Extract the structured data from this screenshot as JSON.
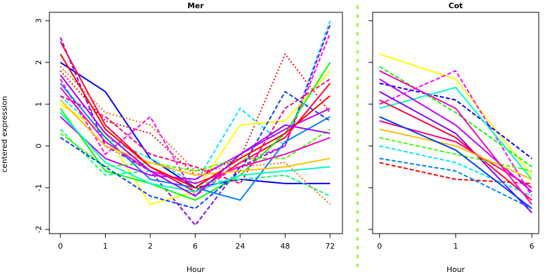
{
  "chart_data": [
    {
      "type": "line",
      "title": "Mer",
      "xlabel": "Hour",
      "ylabel": "centered expression",
      "categories": [
        "0",
        "1",
        "2",
        "6",
        "24",
        "48",
        "72"
      ],
      "yticks": [
        -2,
        -1,
        0,
        1,
        2,
        3
      ],
      "ylim": [
        -2.1,
        3.2
      ],
      "grid": false,
      "legend": "none",
      "series": [
        {
          "color": "#0000ff",
          "dash": "solid",
          "values": [
            2.0,
            1.3,
            -0.3,
            -1.0,
            -0.8,
            -0.9,
            -0.9
          ]
        },
        {
          "color": "#ff0000",
          "dash": "dotted",
          "values": [
            1.8,
            0.6,
            0.3,
            -0.7,
            -0.3,
            2.2,
            0.8
          ]
        },
        {
          "color": "#00e5ff",
          "dash": "dashed",
          "values": [
            1.2,
            0.2,
            -0.3,
            -0.9,
            0.9,
            0.0,
            3.0
          ]
        },
        {
          "color": "#8000ff",
          "dash": "dashed",
          "values": [
            2.6,
            0.0,
            -0.6,
            -1.9,
            -0.5,
            0.0,
            2.9
          ]
        },
        {
          "color": "#ff00ff",
          "dash": "dashed",
          "values": [
            1.6,
            -0.2,
            0.7,
            -1.2,
            -0.4,
            0.0,
            2.7
          ]
        },
        {
          "color": "#ffff00",
          "dash": "solid",
          "values": [
            1.0,
            0.3,
            -1.4,
            -1.1,
            0.5,
            0.6,
            1.8
          ]
        },
        {
          "color": "#00ff80",
          "dash": "dashed",
          "values": [
            0.4,
            -0.7,
            -0.6,
            -0.9,
            -0.8,
            -0.7,
            -1.2
          ]
        },
        {
          "color": "#ff0040",
          "dash": "solid",
          "values": [
            2.5,
            0.5,
            -0.5,
            -1.1,
            -0.4,
            0.2,
            1.5
          ]
        },
        {
          "color": "#ff6000",
          "dash": "dotted",
          "values": [
            1.9,
            0.8,
            0.5,
            -0.6,
            -0.5,
            -0.4,
            -1.4
          ]
        },
        {
          "color": "#00ff00",
          "dash": "solid",
          "values": [
            0.9,
            -0.6,
            -0.9,
            -1.3,
            -0.7,
            0.3,
            2.0
          ]
        },
        {
          "color": "#0080ff",
          "dash": "solid",
          "values": [
            1.5,
            0.2,
            -0.8,
            -1.0,
            -1.3,
            0.1,
            0.7
          ]
        },
        {
          "color": "#c000ff",
          "dash": "solid",
          "values": [
            0.7,
            -0.3,
            -0.7,
            -0.8,
            -0.2,
            0.4,
            0.9
          ]
        },
        {
          "color": "#ff0080",
          "dash": "dashed",
          "values": [
            1.2,
            0.7,
            -0.2,
            -0.5,
            -0.9,
            0.9,
            1.6
          ]
        },
        {
          "color": "#40ff00",
          "dash": "dashed",
          "values": [
            0.3,
            -0.5,
            -0.4,
            -0.6,
            -0.3,
            -0.3,
            0.4
          ]
        },
        {
          "color": "#0040ff",
          "dash": "dashed",
          "values": [
            0.2,
            -0.5,
            -1.2,
            -1.5,
            -0.6,
            1.3,
            0.6
          ]
        },
        {
          "color": "#ff00c0",
          "dash": "solid",
          "values": [
            1.4,
            0.1,
            -0.6,
            -0.9,
            -0.5,
            -0.2,
            0.2
          ]
        },
        {
          "color": "#ffc000",
          "dash": "solid",
          "values": [
            1.1,
            0.0,
            -0.4,
            -0.7,
            -0.6,
            -0.5,
            -0.3
          ]
        },
        {
          "color": "#00ffc0",
          "dash": "solid",
          "values": [
            0.8,
            -0.4,
            -0.9,
            -1.1,
            -0.7,
            -0.6,
            -0.5
          ]
        },
        {
          "color": "#ff0000",
          "dash": "solid",
          "values": [
            2.2,
            0.4,
            -0.5,
            -1.0,
            -0.3,
            0.3,
            1.2
          ]
        },
        {
          "color": "#a000ff",
          "dash": "solid",
          "values": [
            1.7,
            0.3,
            -0.6,
            -1.2,
            -0.2,
            0.5,
            0.3
          ]
        }
      ]
    },
    {
      "type": "line",
      "title": "Cot",
      "xlabel": "Hour",
      "categories": [
        "0",
        "1",
        "6"
      ],
      "ylim": [
        -2.1,
        3.2
      ],
      "grid": false,
      "legend": "none",
      "series": [
        {
          "color": "#ffff00",
          "dash": "solid",
          "values": [
            2.2,
            1.6,
            -0.7
          ]
        },
        {
          "color": "#ff00ff",
          "dash": "dashed",
          "values": [
            1.0,
            1.8,
            -1.2
          ]
        },
        {
          "color": "#00ff00",
          "dash": "dashed",
          "values": [
            1.9,
            0.8,
            -0.5
          ]
        },
        {
          "color": "#0000ff",
          "dash": "dashed",
          "values": [
            1.5,
            1.1,
            -0.3
          ]
        },
        {
          "color": "#ff0000",
          "dash": "dashed",
          "values": [
            -0.4,
            -0.8,
            -0.9
          ]
        },
        {
          "color": "#00ffc0",
          "dash": "solid",
          "values": [
            0.9,
            1.4,
            -0.8
          ]
        },
        {
          "color": "#0080ff",
          "dash": "dashed",
          "values": [
            -0.3,
            -0.6,
            -1.5
          ]
        },
        {
          "color": "#8000ff",
          "dash": "solid",
          "values": [
            1.3,
            0.3,
            -1.6
          ]
        },
        {
          "color": "#ff0040",
          "dash": "solid",
          "values": [
            1.1,
            0.2,
            -1.3
          ]
        },
        {
          "color": "#ff0080",
          "dash": "solid",
          "values": [
            0.6,
            0.1,
            -1.0
          ]
        },
        {
          "color": "#c000ff",
          "dash": "solid",
          "values": [
            1.6,
            0.5,
            -1.1
          ]
        },
        {
          "color": "#40ff00",
          "dash": "dashed",
          "values": [
            0.2,
            -0.2,
            -0.6
          ]
        },
        {
          "color": "#ffc000",
          "dash": "solid",
          "values": [
            0.4,
            0.0,
            -0.8
          ]
        },
        {
          "color": "#00e5ff",
          "dash": "dashed",
          "values": [
            0.0,
            -0.4,
            -1.2
          ]
        },
        {
          "color": "#ff00c0",
          "dash": "solid",
          "values": [
            1.8,
            0.9,
            -1.4
          ]
        },
        {
          "color": "#0040ff",
          "dash": "solid",
          "values": [
            0.7,
            -0.1,
            -1.5
          ]
        }
      ]
    }
  ]
}
